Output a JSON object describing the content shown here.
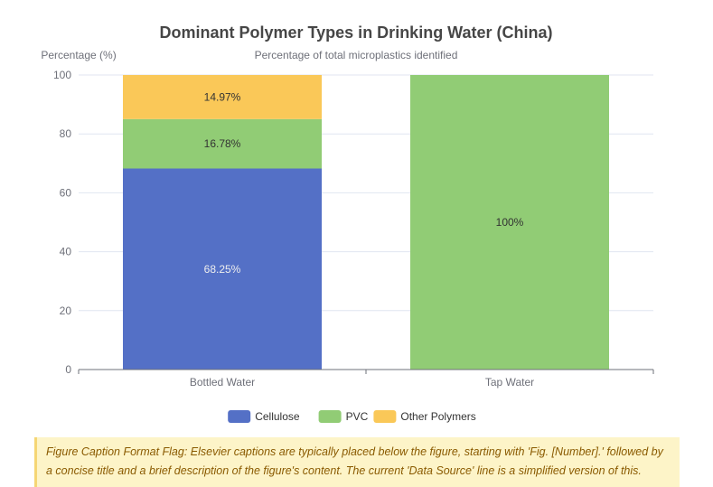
{
  "chart_data": {
    "type": "bar",
    "stacked": true,
    "title": "Dominant Polymer Types in Drinking Water (China)",
    "subtitle": "Percentage of total microplastics identified",
    "ylabel": "Percentage (%)",
    "xlabel": "",
    "ylim": [
      0,
      100
    ],
    "yticks": [
      "0",
      "20",
      "40",
      "60",
      "80",
      "100"
    ],
    "categories": [
      "Bottled Water",
      "Tap Water"
    ],
    "grid": true,
    "legend_position": "bottom",
    "series": [
      {
        "name": "Cellulose",
        "color": "#5470c6",
        "values": [
          68.25,
          0
        ],
        "labels": [
          "68.25%",
          ""
        ]
      },
      {
        "name": "PVC",
        "color": "#91cc75",
        "values": [
          16.78,
          100
        ],
        "labels": [
          "16.78%",
          "100%"
        ]
      },
      {
        "name": "Other Polymers",
        "color": "#fac858",
        "values": [
          14.97,
          0
        ],
        "labels": [
          "14.97%",
          ""
        ]
      }
    ]
  },
  "caption": {
    "text": "Figure Caption Format Flag: Elsevier captions are typically placed below the figure, starting with 'Fig. [Number].' followed by a concise title and a brief description of the figure's content. The current 'Data Source' line is a simplified version of this."
  }
}
